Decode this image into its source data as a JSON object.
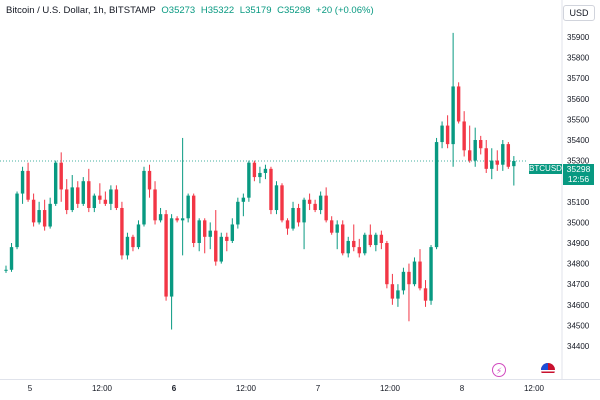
{
  "header": {
    "symbol_line": "Bitcoin / U.S. Dollar, 1h, BITSTAMP",
    "open": "O35273",
    "high": "H35322",
    "low": "L35179",
    "close": "C35298",
    "change": "+20 (+0.06%)"
  },
  "currency_button": "USD",
  "price_tag": {
    "ticker": "BTCUSD",
    "price": "35298",
    "countdown": "12:56"
  },
  "icons": [
    "lightning-icon",
    "us-flag-icon"
  ],
  "colors": {
    "up": "#089981",
    "down": "#f23645",
    "last_price": "#089981"
  },
  "chart_data": {
    "type": "candlestick",
    "y_ticks": [
      35900,
      35800,
      35700,
      35600,
      35500,
      35400,
      35300,
      35200,
      35100,
      35000,
      34900,
      34800,
      34700,
      34600,
      34500,
      34400
    ],
    "x_ticks": [
      {
        "label": "5",
        "bold": false
      },
      {
        "label": "12:00",
        "bold": false
      },
      {
        "label": "6",
        "bold": true
      },
      {
        "label": "12:00",
        "bold": false
      },
      {
        "label": "7",
        "bold": false
      },
      {
        "label": "12:00",
        "bold": false
      },
      {
        "label": "8",
        "bold": false
      },
      {
        "label": "12:00",
        "bold": false
      }
    ],
    "last_price": 35298,
    "candles": [
      [
        34770,
        34790,
        34755,
        34770
      ],
      [
        34770,
        34900,
        34760,
        34880
      ],
      [
        34880,
        35150,
        34870,
        35140
      ],
      [
        35140,
        35270,
        35090,
        35250
      ],
      [
        35250,
        35290,
        35100,
        35110
      ],
      [
        35110,
        35140,
        34980,
        35000
      ],
      [
        35000,
        35100,
        34990,
        35060
      ],
      [
        35060,
        35110,
        34960,
        34980
      ],
      [
        34980,
        35120,
        34970,
        35090
      ],
      [
        35090,
        35300,
        35080,
        35290
      ],
      [
        35290,
        35340,
        35100,
        35160
      ],
      [
        35160,
        35210,
        35040,
        35060
      ],
      [
        35060,
        35230,
        35050,
        35170
      ],
      [
        35170,
        35200,
        35070,
        35090
      ],
      [
        35090,
        35220,
        35080,
        35200
      ],
      [
        35200,
        35260,
        35050,
        35070
      ],
      [
        35070,
        35140,
        35050,
        35130
      ],
      [
        35130,
        35190,
        35090,
        35110
      ],
      [
        35110,
        35150,
        35080,
        35090
      ],
      [
        35090,
        35180,
        35060,
        35160
      ],
      [
        35160,
        35180,
        35060,
        35070
      ],
      [
        35070,
        35100,
        34820,
        34840
      ],
      [
        34840,
        34950,
        34820,
        34930
      ],
      [
        34930,
        34940,
        34860,
        34880
      ],
      [
        34880,
        35010,
        34870,
        34990
      ],
      [
        34990,
        35270,
        34980,
        35250
      ],
      [
        35250,
        35280,
        35120,
        35160
      ],
      [
        35160,
        35200,
        34990,
        35010
      ],
      [
        35010,
        35070,
        35000,
        35040
      ],
      [
        35040,
        35060,
        34620,
        34640
      ],
      [
        34640,
        35040,
        34480,
        35020
      ],
      [
        35020,
        35030,
        35000,
        35010
      ],
      [
        35010,
        35410,
        34840,
        35020
      ],
      [
        35020,
        35140,
        35000,
        35130
      ],
      [
        35130,
        35140,
        34880,
        34900
      ],
      [
        34900,
        35020,
        34860,
        35010
      ],
      [
        35010,
        35020,
        34850,
        34930
      ],
      [
        34930,
        35000,
        34870,
        34960
      ],
      [
        34960,
        35060,
        34790,
        34810
      ],
      [
        34810,
        34950,
        34800,
        34930
      ],
      [
        34930,
        34950,
        34860,
        34910
      ],
      [
        34910,
        35020,
        34900,
        34990
      ],
      [
        34990,
        35120,
        34970,
        35100
      ],
      [
        35100,
        35140,
        35030,
        35120
      ],
      [
        35120,
        35300,
        35100,
        35290
      ],
      [
        35290,
        35300,
        35200,
        35220
      ],
      [
        35220,
        35270,
        35190,
        35240
      ],
      [
        35240,
        35280,
        35210,
        35260
      ],
      [
        35260,
        35270,
        35040,
        35060
      ],
      [
        35060,
        35200,
        35040,
        35180
      ],
      [
        35180,
        35190,
        35000,
        35010
      ],
      [
        35010,
        35020,
        34940,
        34970
      ],
      [
        34970,
        35100,
        34960,
        35070
      ],
      [
        35070,
        35090,
        34980,
        35000
      ],
      [
        35000,
        35120,
        34870,
        35110
      ],
      [
        35110,
        35140,
        35060,
        35090
      ],
      [
        35090,
        35110,
        35050,
        35060
      ],
      [
        35060,
        35150,
        35040,
        35130
      ],
      [
        35130,
        35170,
        35000,
        35010
      ],
      [
        35010,
        35030,
        34940,
        34950
      ],
      [
        34950,
        35010,
        34870,
        34990
      ],
      [
        34990,
        35010,
        34840,
        34850
      ],
      [
        34850,
        34930,
        34830,
        34910
      ],
      [
        34910,
        34990,
        34860,
        34880
      ],
      [
        34880,
        34920,
        34830,
        34850
      ],
      [
        34850,
        34950,
        34840,
        34940
      ],
      [
        34940,
        34990,
        34880,
        34890
      ],
      [
        34890,
        34950,
        34860,
        34940
      ],
      [
        34940,
        34960,
        34870,
        34900
      ],
      [
        34900,
        34910,
        34680,
        34700
      ],
      [
        34700,
        34750,
        34600,
        34630
      ],
      [
        34630,
        34700,
        34590,
        34670
      ],
      [
        34670,
        34780,
        34650,
        34760
      ],
      [
        34760,
        34800,
        34520,
        34700
      ],
      [
        34700,
        34830,
        34690,
        34810
      ],
      [
        34810,
        34870,
        34670,
        34680
      ],
      [
        34680,
        34720,
        34590,
        34620
      ],
      [
        34620,
        34890,
        34600,
        34880
      ],
      [
        34880,
        35410,
        34870,
        35390
      ],
      [
        35390,
        35490,
        35360,
        35470
      ],
      [
        35470,
        35520,
        35360,
        35380
      ],
      [
        35380,
        35920,
        35270,
        35660
      ],
      [
        35660,
        35680,
        35480,
        35490
      ],
      [
        35490,
        35540,
        35320,
        35350
      ],
      [
        35350,
        35470,
        35290,
        35300
      ],
      [
        35300,
        35460,
        35270,
        35400
      ],
      [
        35400,
        35420,
        35330,
        35360
      ],
      [
        35360,
        35400,
        35240,
        35260
      ],
      [
        35260,
        35360,
        35210,
        35300
      ],
      [
        35300,
        35350,
        35250,
        35280
      ],
      [
        35280,
        35400,
        35250,
        35380
      ],
      [
        35380,
        35390,
        35260,
        35270
      ],
      [
        35273,
        35322,
        35179,
        35298
      ]
    ]
  }
}
